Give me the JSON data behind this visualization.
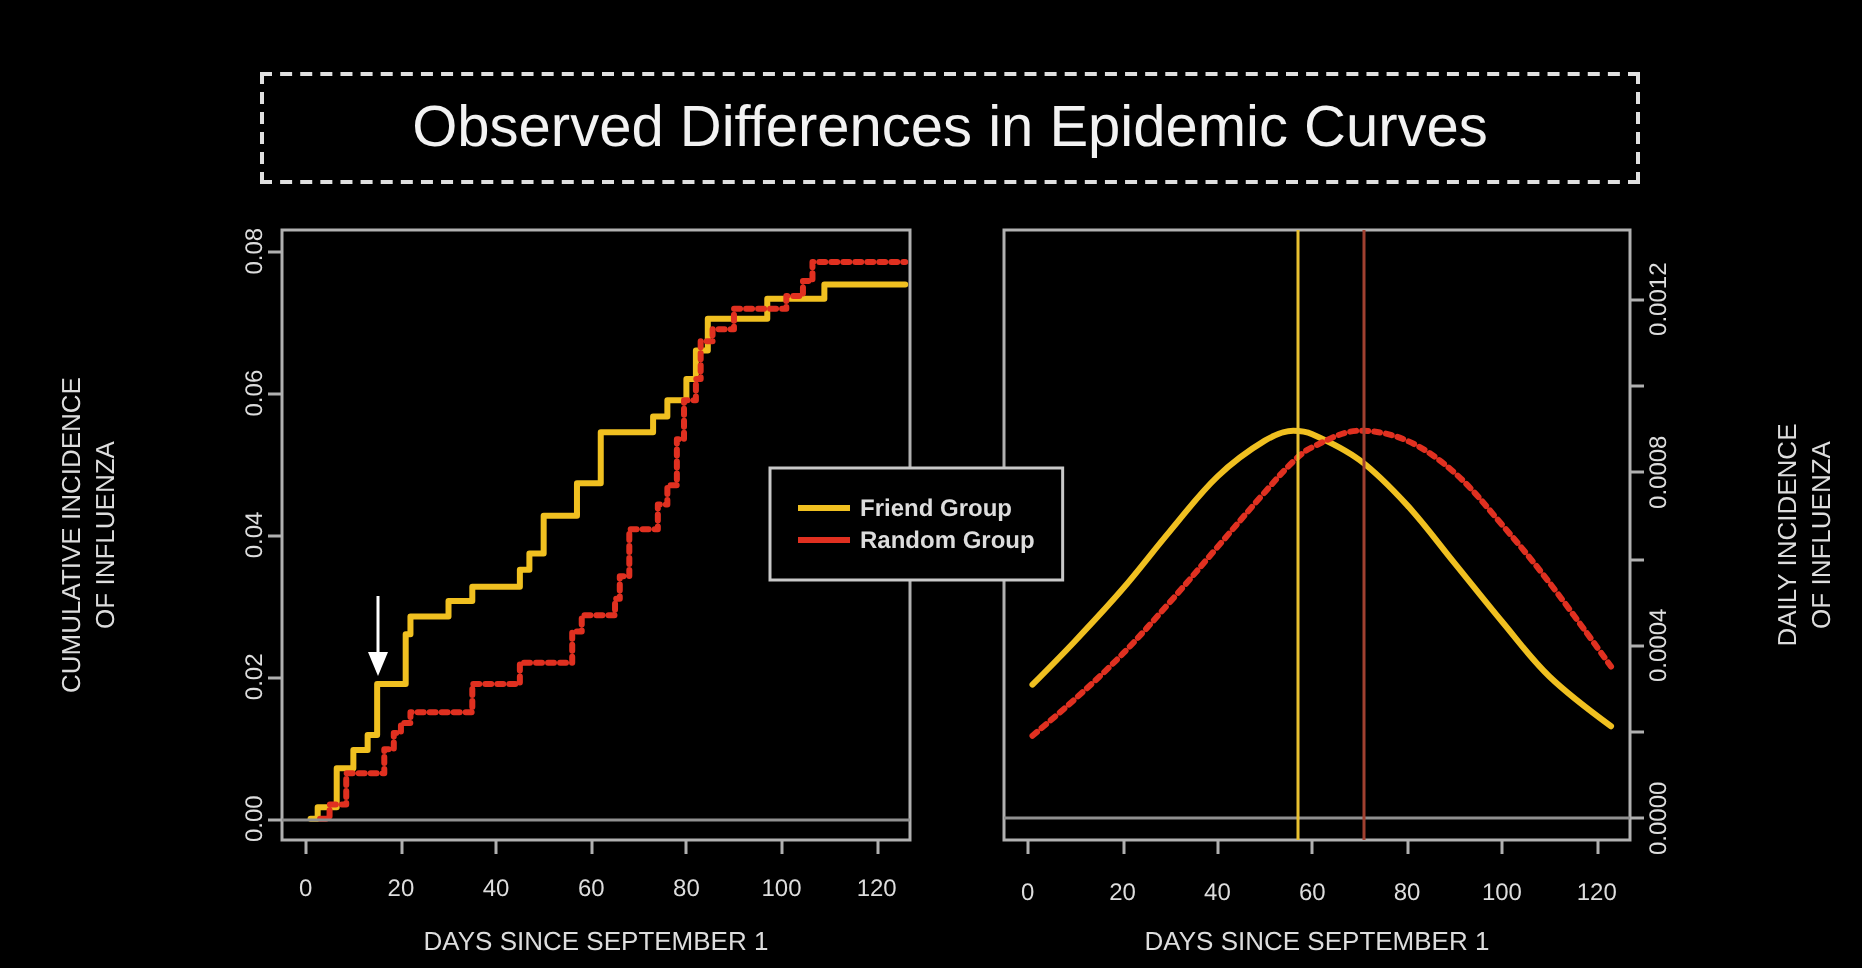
{
  "chart_data": [
    {
      "type": "step",
      "title": "Observed Differences in Epidemic Curves",
      "xlabel": "DAYS SINCE SEPTEMBER 1",
      "ylabel": "CUMULATIVE INCIDENCE\nOF INFLUENZA",
      "legend": "right",
      "marker": "none",
      "xlim": [
        -5,
        127
      ],
      "xticks": [
        0,
        20,
        40,
        60,
        80,
        100,
        120
      ],
      "ylim": [
        -0.003,
        0.083
      ],
      "yticks": [
        {
          "value": 0,
          "label": "0.00"
        },
        {
          "value": 0.02,
          "label": "0.02"
        },
        {
          "value": 0.04,
          "label": "0.04"
        },
        {
          "value": 0.06,
          "label": "0.06"
        },
        {
          "value": 0.08,
          "label": "0.08"
        }
      ],
      "ref_lines": [
        {
          "axis": "y",
          "value": 0,
          "color": "#909090"
        }
      ],
      "series": [
        {
          "name": "Friend Group",
          "color": "#f0c020",
          "line_style": "solid",
          "x": [
            1,
            2.5,
            6.5,
            10,
            13,
            15,
            21,
            22,
            30,
            35,
            45,
            47,
            50,
            57,
            62,
            73,
            76,
            80,
            82,
            84.5,
            97,
            109,
            126
          ],
          "values": [
            0,
            0.0016,
            0.0071,
            0.0097,
            0.0118,
            0.019,
            0.026,
            0.0285,
            0.0307,
            0.0327,
            0.0351,
            0.0374,
            0.0427,
            0.0473,
            0.0545,
            0.0567,
            0.059,
            0.062,
            0.066,
            0.0705,
            0.0733,
            0.0753,
            0.0753
          ]
        },
        {
          "name": "Random Group",
          "color": "#e03020",
          "line_style": "dotted",
          "x": [
            3,
            5,
            8.5,
            16.5,
            18.5,
            20,
            22,
            35,
            45,
            56,
            58,
            65,
            66,
            68,
            74,
            76,
            78,
            79.5,
            82,
            83,
            85.5,
            90,
            101,
            104.5,
            106.5,
            126
          ],
          "values": [
            0,
            0.002,
            0.0064,
            0.0098,
            0.0121,
            0.0135,
            0.015,
            0.019,
            0.022,
            0.0264,
            0.0287,
            0.031,
            0.0342,
            0.0408,
            0.0443,
            0.047,
            0.0535,
            0.059,
            0.062,
            0.0673,
            0.069,
            0.0719,
            0.0737,
            0.0758,
            0.0785,
            0.0785
          ]
        }
      ]
    },
    {
      "type": "line",
      "xlabel": "DAYS SINCE SEPTEMBER 1",
      "y2label": "DAILY INCIDENCE\nOF INFLUENZA",
      "marker": "none",
      "xlim": [
        -5,
        127
      ],
      "xticks": [
        0,
        20,
        40,
        60,
        80,
        100,
        120
      ],
      "y2lim": [
        -5e-05,
        0.00136
      ],
      "y2ticks": [
        {
          "value": 0,
          "label": "0.0000"
        },
        {
          "value": 0.0002,
          "label": null
        },
        {
          "value": 0.0004,
          "label": "0.0004"
        },
        {
          "value": 0.0006,
          "label": null
        },
        {
          "value": 0.0008,
          "label": "0.0008"
        },
        {
          "value": 0.001,
          "label": null
        },
        {
          "value": 0.0012,
          "label": "0.0012"
        }
      ],
      "ref_lines": [
        {
          "axis": "y2",
          "value": 0,
          "color": "#909090"
        },
        {
          "axis": "x",
          "value": 56.8,
          "color": "#e8c030"
        },
        {
          "axis": "x",
          "value": 70.8,
          "color": "#a04030"
        }
      ],
      "series": [
        {
          "name": "Friend Group",
          "color": "#f0c020",
          "axis": "y2",
          "line_style": "solid",
          "x": [
            1,
            10,
            20,
            30,
            40,
            50,
            56,
            60,
            70,
            80,
            90,
            100,
            110,
            123
          ],
          "values": [
            0.000309,
            0.00041,
            0.00053,
            0.000664,
            0.00079,
            0.000873,
            0.000896,
            0.000888,
            0.000828,
            0.000724,
            0.00059,
            0.000455,
            0.000328,
            0.000213
          ]
        },
        {
          "name": "Random Group",
          "color": "#e03020",
          "axis": "y2",
          "line_style": "dotted",
          "x": [
            1,
            10,
            20,
            30,
            40,
            50,
            56,
            60,
            70,
            80,
            90,
            100,
            110,
            123
          ],
          "values": [
            0.000191,
            0.000276,
            0.00038,
            0.0005,
            0.000627,
            0.000754,
            0.000825,
            0.000858,
            0.000896,
            0.000873,
            0.000799,
            0.000679,
            0.000545,
            0.000351
          ]
        }
      ]
    }
  ]
}
